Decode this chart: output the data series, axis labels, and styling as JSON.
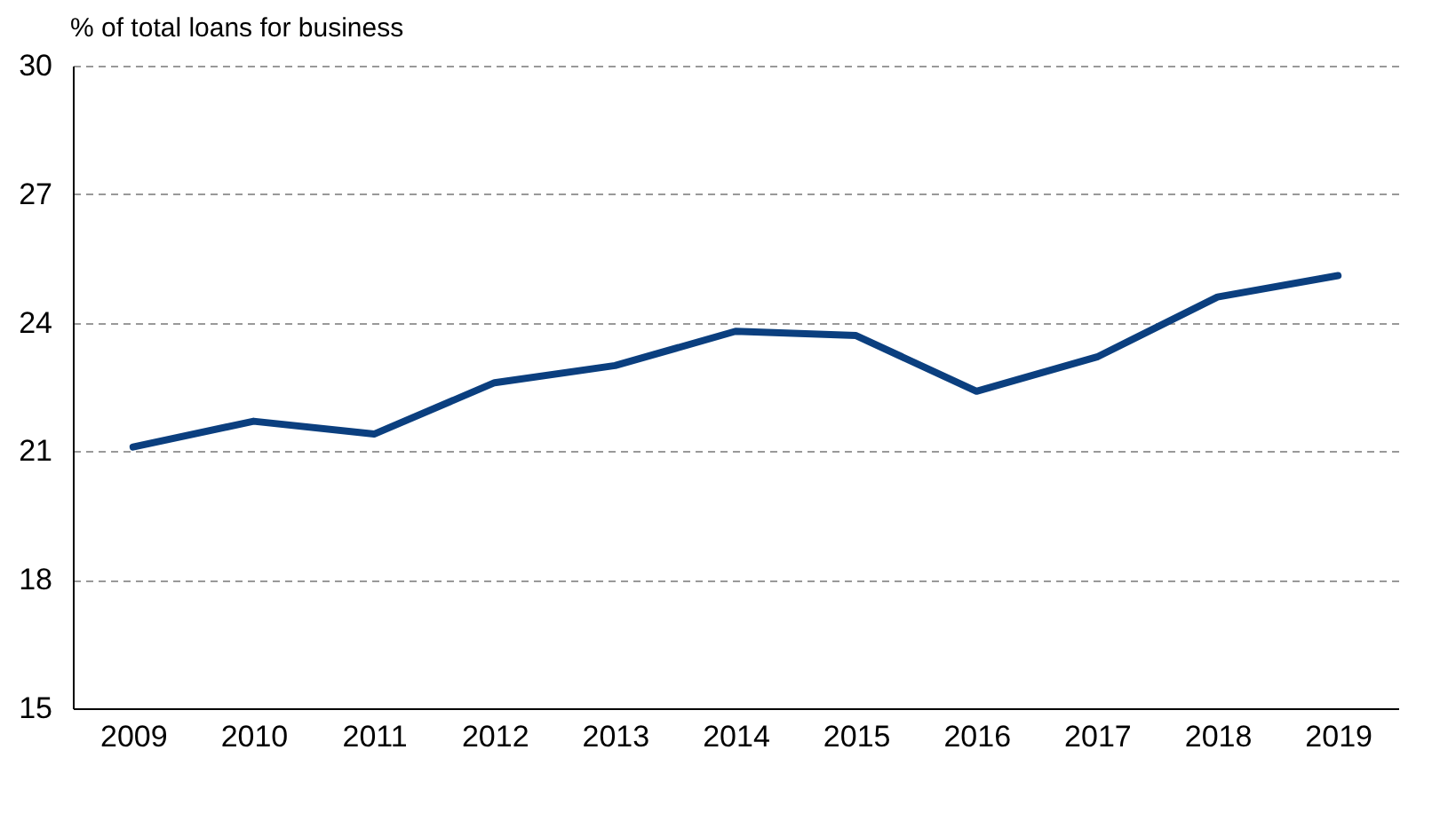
{
  "chart_data": {
    "type": "line",
    "ylabel": "% of total loans for business",
    "categories": [
      "2009",
      "2010",
      "2011",
      "2012",
      "2013",
      "2014",
      "2015",
      "2016",
      "2017",
      "2018",
      "2019"
    ],
    "series": [
      {
        "color": "#0b3f7f",
        "values": [
          21.1,
          21.7,
          21.4,
          22.6,
          23.0,
          23.8,
          23.7,
          22.4,
          23.2,
          24.6,
          25.1
        ]
      }
    ],
    "ylim": [
      15,
      30
    ],
    "yticks": [
      15,
      18,
      21,
      24,
      27,
      30
    ],
    "grid": "y",
    "legend": false,
    "marker": "none",
    "line_style": "solid"
  }
}
